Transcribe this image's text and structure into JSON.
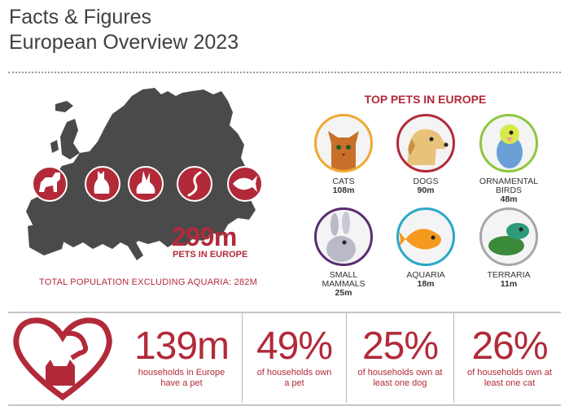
{
  "title": {
    "line1": "Facts & Figures",
    "line2": "European Overview 2023"
  },
  "map": {
    "total_pets": "299m",
    "total_pets_label": "PETS IN EUROPE",
    "total_population_note": "TOTAL POPULATION EXCLUDING AQUARIA: 282M",
    "icons": [
      "dog-icon",
      "cat-icon",
      "rabbit-icon",
      "lizard-icon",
      "fish-icon"
    ]
  },
  "top_pets": {
    "heading": "TOP PETS IN EUROPE",
    "items": [
      {
        "name": "CATS",
        "value": "108m",
        "color": "#f0a830"
      },
      {
        "name": "DOGS",
        "value": "90m",
        "color": "#b22a3a"
      },
      {
        "name": "ORNAMENTAL BIRDS",
        "value": "48m",
        "color": "#8dc63f"
      },
      {
        "name": "SMALL MAMMALS",
        "value": "25m",
        "color": "#5a2d6e"
      },
      {
        "name": "AQUARIA",
        "value": "18m",
        "color": "#2aa8c8"
      },
      {
        "name": "TERRARIA",
        "value": "11m",
        "color": "#a7a7a7"
      }
    ]
  },
  "stats": [
    {
      "value": "139m",
      "label1": "households in Europe",
      "label2": "have a pet"
    },
    {
      "value": "49%",
      "label1": "of households own",
      "label2": "a pet"
    },
    {
      "value": "25%",
      "label1": "of households own at",
      "label2": "least one dog"
    },
    {
      "value": "26%",
      "label1": "of households own at",
      "label2": "least one cat"
    }
  ],
  "colors": {
    "accent": "#b22a3a",
    "map": "#4a4a4a",
    "text": "#404040"
  }
}
